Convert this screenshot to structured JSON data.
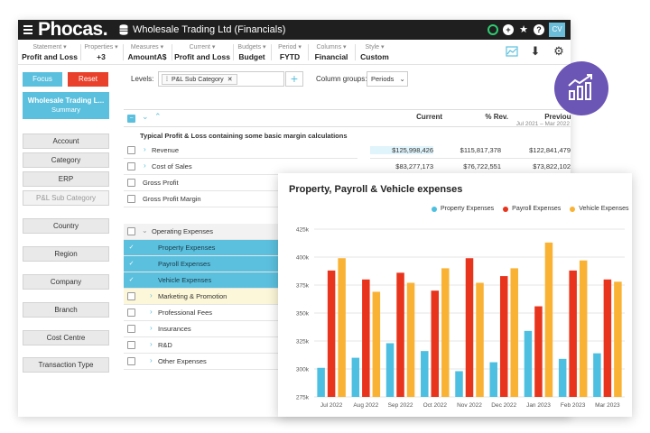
{
  "app": {
    "logo": "Phocas.",
    "title": "Wholesale Trading Ltd (Financials)",
    "avatar": "CV"
  },
  "filters": [
    {
      "label": "Statement ▾",
      "value": "Profit and Loss"
    },
    {
      "label": "Properties ▾",
      "value": "+3"
    },
    {
      "label": "Measures ▾",
      "value": "AmountA$"
    },
    {
      "label": "Current ▾",
      "value": "Profit and Loss"
    },
    {
      "label": "Budgets ▾",
      "value": "Budget"
    },
    {
      "label": "Period ▾",
      "value": "FYTD"
    },
    {
      "label": "Columns ▾",
      "value": "Financial"
    },
    {
      "label": "Style ▾",
      "value": "Custom"
    }
  ],
  "left": {
    "focus": "Focus",
    "reset": "Reset",
    "summary_title": "Wholesale Trading L...",
    "summary_sub": "Summary",
    "dimensions": [
      "Account",
      "Category",
      "ERP",
      "P&L Sub Category",
      "Country",
      "Region",
      "Company",
      "Branch",
      "Cost Centre",
      "Transaction Type"
    ]
  },
  "levels": {
    "label": "Levels:",
    "chip": "P&L Sub Category",
    "column_groups_label": "Column groups:",
    "column_groups_value": "Periods"
  },
  "grid": {
    "headers": {
      "current": "Current",
      "rev": "% Rev.",
      "previous": "Previous",
      "previous_sub": "Jul 2021 – Mar 2022"
    },
    "section_title": "Typical Profit & Loss containing some basic margin calculations",
    "rows": [
      {
        "label": "Revenue",
        "current": "$125,998,426",
        "rev": "$115,817,378",
        "prev": "$122,841,479"
      },
      {
        "label": "Cost of Sales",
        "current": "$83,277,173",
        "rev": "$76,722,551",
        "prev": "$73,822,102"
      },
      {
        "label": "Gross Profit"
      },
      {
        "label": "Gross Profit Margin"
      },
      {
        "label": "Operating Expenses"
      },
      {
        "label": "Property Expenses"
      },
      {
        "label": "Payroll Expenses"
      },
      {
        "label": "Vehicle Expenses"
      },
      {
        "label": "Marketing & Promotion"
      },
      {
        "label": "Professional Fees"
      },
      {
        "label": "Insurances"
      },
      {
        "label": "R&D"
      },
      {
        "label": "Other Expenses"
      }
    ]
  },
  "colors": {
    "property": "#4dbfe0",
    "payroll": "#e8341c",
    "vehicle": "#f9b233",
    "accent": "#5bc0de",
    "badge": "#6b55b5"
  },
  "chart_data": {
    "type": "bar",
    "title": "Property, Payroll & Vehicle expenses",
    "categories": [
      "Jul 2022",
      "Aug 2022",
      "Sep 2022",
      "Oct 2022",
      "Nov 2022",
      "Dec 2022",
      "Jan 2023",
      "Feb 2023",
      "Mar 2023"
    ],
    "series": [
      {
        "name": "Property Expenses",
        "values": [
          301,
          310,
          323,
          316,
          298,
          306,
          334,
          309,
          314
        ]
      },
      {
        "name": "Payroll Expenses",
        "values": [
          388,
          380,
          386,
          370,
          399,
          383,
          356,
          388,
          380
        ]
      },
      {
        "name": "Vehicle Expenses",
        "values": [
          399,
          369,
          377,
          390,
          377,
          390,
          413,
          397,
          378
        ]
      }
    ],
    "yticks": [
      "275k",
      "300k",
      "325k",
      "350k",
      "375k",
      "400k",
      "425k"
    ],
    "ylim": [
      275,
      425
    ],
    "legend_position": "top-right",
    "grid": true
  }
}
